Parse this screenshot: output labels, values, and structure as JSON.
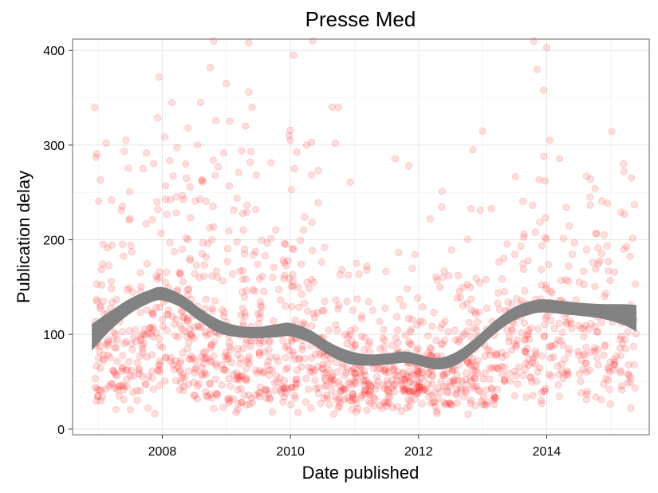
{
  "chart_data": {
    "type": "scatter",
    "title": "Presse Med",
    "xlabel": "Date published",
    "ylabel": "Publication delay",
    "xlim": [
      2006.6,
      2015.6
    ],
    "ylim": [
      -6,
      412
    ],
    "x_ticks": [
      2008,
      2010,
      2012,
      2014
    ],
    "x_tick_labels": [
      "2008",
      "2010",
      "2012",
      "2014"
    ],
    "y_ticks": [
      0,
      100,
      200,
      300,
      400
    ],
    "y_tick_labels": [
      "0",
      "100",
      "200",
      "300",
      "400"
    ],
    "grid": true,
    "point_color": "#ff0000",
    "point_alpha": 0.13,
    "smooth_color": "#7f7f7f",
    "smooth": {
      "x": [
        2006.9,
        2007.2,
        2007.5,
        2007.8,
        2008.0,
        2008.3,
        2008.6,
        2008.9,
        2009.2,
        2009.5,
        2009.8,
        2010.0,
        2010.3,
        2010.6,
        2010.9,
        2011.2,
        2011.5,
        2011.8,
        2012.0,
        2012.3,
        2012.6,
        2012.9,
        2013.2,
        2013.5,
        2013.8,
        2014.0,
        2014.3,
        2014.6,
        2014.9,
        2015.2,
        2015.4
      ],
      "y": [
        97,
        115,
        130,
        140,
        143,
        135,
        120,
        108,
        103,
        102,
        104,
        105,
        98,
        85,
        76,
        73,
        74,
        76,
        73,
        69,
        75,
        90,
        108,
        122,
        129,
        130,
        128,
        126,
        124,
        121,
        117
      ],
      "band": [
        14,
        10,
        8,
        7,
        7,
        7,
        7,
        7,
        6,
        6,
        7,
        7,
        7,
        7,
        7,
        6,
        6,
        6,
        6,
        6,
        7,
        7,
        7,
        7,
        7,
        7,
        7,
        7,
        8,
        11,
        14
      ]
    },
    "segments": [
      {
        "start": 2006.95,
        "end": 2007.85,
        "n": 165,
        "median": 95,
        "spread": 0.6
      },
      {
        "start": 2007.85,
        "end": 2008.7,
        "n": 175,
        "median": 110,
        "spread": 0.65
      },
      {
        "start": 2008.7,
        "end": 2009.6,
        "n": 185,
        "median": 90,
        "spread": 0.75
      },
      {
        "start": 2009.6,
        "end": 2010.5,
        "n": 160,
        "median": 85,
        "spread": 0.7
      },
      {
        "start": 2010.5,
        "end": 2011.4,
        "n": 165,
        "median": 58,
        "spread": 0.55
      },
      {
        "start": 2011.4,
        "end": 2012.3,
        "n": 185,
        "median": 58,
        "spread": 0.55
      },
      {
        "start": 2012.3,
        "end": 2013.2,
        "n": 160,
        "median": 65,
        "spread": 0.6
      },
      {
        "start": 2013.2,
        "end": 2014.1,
        "n": 140,
        "median": 95,
        "spread": 0.6
      },
      {
        "start": 2014.1,
        "end": 2015.4,
        "n": 175,
        "median": 100,
        "spread": 0.6
      }
    ],
    "outliers": [
      {
        "x": 2006.95,
        "y": 340
      },
      {
        "x": 2007.7,
        "y": 275
      },
      {
        "x": 2007.95,
        "y": 372
      },
      {
        "x": 2008.15,
        "y": 345
      },
      {
        "x": 2008.4,
        "y": 318
      },
      {
        "x": 2008.6,
        "y": 345
      },
      {
        "x": 2008.75,
        "y": 382
      },
      {
        "x": 2008.8,
        "y": 410
      },
      {
        "x": 2009.0,
        "y": 365
      },
      {
        "x": 2009.3,
        "y": 320
      },
      {
        "x": 2009.35,
        "y": 356
      },
      {
        "x": 2009.35,
        "y": 408
      },
      {
        "x": 2009.4,
        "y": 340
      },
      {
        "x": 2010.05,
        "y": 395
      },
      {
        "x": 2010.35,
        "y": 410
      },
      {
        "x": 2010.65,
        "y": 340
      },
      {
        "x": 2010.75,
        "y": 340
      },
      {
        "x": 2010.7,
        "y": 302
      },
      {
        "x": 2010.0,
        "y": 305
      },
      {
        "x": 2013.0,
        "y": 315
      },
      {
        "x": 2012.85,
        "y": 295
      },
      {
        "x": 2013.8,
        "y": 410
      },
      {
        "x": 2013.85,
        "y": 380
      },
      {
        "x": 2014.0,
        "y": 403
      },
      {
        "x": 2014.05,
        "y": 305
      },
      {
        "x": 2013.95,
        "y": 358
      },
      {
        "x": 2015.2,
        "y": 280
      },
      {
        "x": 2011.85,
        "y": 278
      },
      {
        "x": 2008.55,
        "y": 300
      }
    ]
  }
}
